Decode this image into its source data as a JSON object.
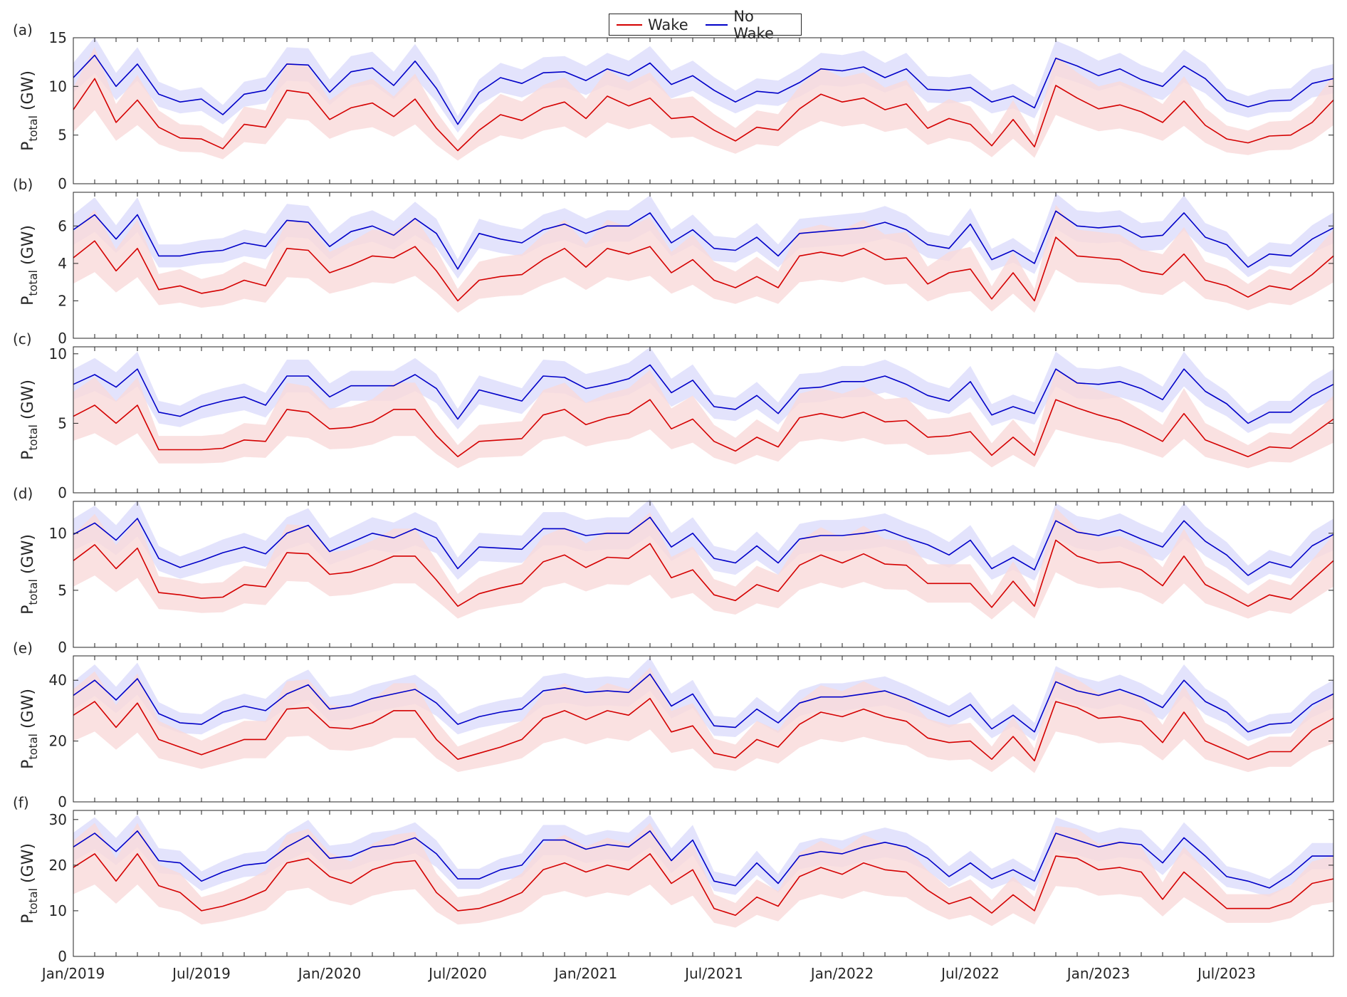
{
  "legend": {
    "wake_label": "Wake",
    "nowake_label": "No Wake"
  },
  "colors": {
    "wake": "#d40000",
    "nowake": "#0000c8",
    "wake_band": "#f9dada",
    "nowake_band": "#dcdcfb",
    "axis": "#262626"
  },
  "chart_data": [
    {
      "type": "area",
      "panel_label": "(a)",
      "ylabel_main": "P",
      "ylabel_sub": "total",
      "ylabel_unit": " (GW)",
      "ylim": [
        0,
        15
      ],
      "yticks": [
        0,
        5,
        10,
        15
      ],
      "xtick_labels": [
        "Jan/2019",
        "Jul/2019",
        "Jan/2020",
        "Jul/2020",
        "Jan/2021",
        "Jul/2021",
        "Jan/2022",
        "Jul/2022",
        "Jan/2023",
        "Jul/2023"
      ],
      "series": [
        {
          "name": "No Wake",
          "color": "#0000c8",
          "spread": 0.14,
          "values": [
            10.9,
            13.2,
            10.0,
            12.3,
            9.2,
            8.4,
            8.7,
            7.1,
            9.2,
            9.6,
            12.3,
            12.2,
            9.4,
            11.5,
            11.9,
            10.1,
            12.6,
            9.8,
            6.1,
            9.4,
            10.9,
            10.3,
            11.4,
            11.5,
            10.6,
            11.8,
            11.1,
            12.4,
            10.2,
            11.1,
            9.6,
            8.4,
            9.5,
            9.3,
            10.4,
            11.8,
            11.6,
            12.0,
            10.9,
            11.8,
            9.7,
            9.6,
            9.9,
            8.4,
            9.0,
            7.8,
            12.9,
            12.1,
            11.1,
            11.8,
            10.7,
            10.0,
            12.1,
            10.8,
            8.6,
            7.9,
            8.5,
            8.6,
            10.3,
            10.8
          ]
        },
        {
          "name": "Wake",
          "color": "#d40000",
          "spread": 0.3,
          "values": [
            7.6,
            10.8,
            6.3,
            8.6,
            5.8,
            4.7,
            4.6,
            3.6,
            6.1,
            5.8,
            9.6,
            9.3,
            6.6,
            7.8,
            8.3,
            6.9,
            8.7,
            5.7,
            3.4,
            5.5,
            7.1,
            6.5,
            7.8,
            8.4,
            6.7,
            9.0,
            8.0,
            8.8,
            6.7,
            6.9,
            5.5,
            4.4,
            5.8,
            5.5,
            7.7,
            9.2,
            8.4,
            8.8,
            7.6,
            8.2,
            5.7,
            6.7,
            6.1,
            3.9,
            6.6,
            3.8,
            10.1,
            8.8,
            7.7,
            8.1,
            7.4,
            6.3,
            8.5,
            6.0,
            4.6,
            4.2,
            4.9,
            5.0,
            6.3,
            8.6
          ]
        }
      ]
    },
    {
      "type": "area",
      "panel_label": "(b)",
      "ylabel_main": "P",
      "ylabel_sub": "total",
      "ylabel_unit": " (GW)",
      "ylim": [
        0,
        7.8
      ],
      "yticks": [
        0,
        2,
        4,
        6
      ],
      "xtick_labels": [
        "Jan/2019",
        "Jul/2019",
        "Jan/2020",
        "Jul/2020",
        "Jan/2021",
        "Jul/2021",
        "Jan/2022",
        "Jul/2022",
        "Jan/2023",
        "Jul/2023"
      ],
      "series": [
        {
          "name": "No Wake",
          "color": "#0000c8",
          "spread": 0.14,
          "values": [
            5.8,
            6.6,
            5.3,
            6.6,
            4.4,
            4.4,
            4.6,
            4.7,
            5.1,
            4.9,
            6.3,
            6.2,
            4.9,
            5.7,
            6.0,
            5.5,
            6.4,
            5.6,
            3.7,
            5.6,
            5.3,
            5.1,
            5.8,
            6.1,
            5.6,
            6.0,
            6.0,
            6.7,
            5.1,
            5.8,
            4.8,
            4.7,
            5.4,
            4.4,
            5.6,
            5.7,
            5.8,
            5.9,
            6.2,
            5.8,
            5.0,
            4.8,
            6.1,
            4.2,
            4.7,
            4.0,
            6.8,
            6.0,
            5.9,
            6.0,
            5.4,
            5.5,
            6.7,
            5.4,
            5.0,
            3.8,
            4.5,
            4.4,
            5.3,
            5.9
          ]
        },
        {
          "name": "Wake",
          "color": "#d40000",
          "spread": 0.32,
          "values": [
            4.3,
            5.2,
            3.6,
            4.8,
            2.6,
            2.8,
            2.4,
            2.6,
            3.1,
            2.8,
            4.8,
            4.7,
            3.5,
            3.9,
            4.4,
            4.3,
            4.9,
            3.6,
            2.0,
            3.1,
            3.3,
            3.4,
            4.2,
            4.8,
            3.8,
            4.8,
            4.5,
            4.9,
            3.5,
            4.2,
            3.1,
            2.7,
            3.3,
            2.7,
            4.4,
            4.6,
            4.4,
            4.8,
            4.2,
            4.3,
            2.9,
            3.5,
            3.7,
            2.1,
            3.5,
            2.0,
            5.4,
            4.4,
            4.3,
            4.2,
            3.6,
            3.4,
            4.5,
            3.1,
            2.8,
            2.2,
            2.8,
            2.6,
            3.4,
            4.4
          ]
        }
      ]
    },
    {
      "type": "area",
      "panel_label": "(c)",
      "ylabel_main": "P",
      "ylabel_sub": "total",
      "ylabel_unit": " (GW)",
      "ylim": [
        0,
        10.5
      ],
      "yticks": [
        0,
        5,
        10
      ],
      "xtick_labels": [
        "Jan/2019",
        "Jul/2019",
        "Jan/2020",
        "Jul/2020",
        "Jan/2021",
        "Jul/2021",
        "Jan/2022",
        "Jul/2022",
        "Jan/2023",
        "Jul/2023"
      ],
      "series": [
        {
          "name": "No Wake",
          "color": "#0000c8",
          "spread": 0.14,
          "values": [
            7.8,
            8.5,
            7.6,
            8.9,
            5.8,
            5.5,
            6.2,
            6.6,
            6.9,
            6.3,
            8.4,
            8.4,
            6.9,
            7.7,
            7.7,
            7.7,
            8.5,
            7.5,
            5.3,
            7.4,
            7.0,
            6.6,
            8.4,
            8.3,
            7.5,
            7.8,
            8.2,
            9.2,
            7.2,
            8.1,
            6.2,
            6.0,
            7.0,
            5.7,
            7.5,
            7.6,
            8.0,
            8.0,
            8.4,
            7.8,
            7.0,
            6.6,
            8.0,
            5.6,
            6.2,
            5.7,
            8.9,
            7.9,
            7.8,
            8.0,
            7.5,
            6.7,
            8.9,
            7.3,
            6.4,
            5.0,
            5.8,
            5.8,
            7.0,
            7.8
          ]
        },
        {
          "name": "Wake",
          "color": "#d40000",
          "spread": 0.32,
          "values": [
            5.5,
            6.3,
            5.0,
            6.3,
            3.1,
            3.1,
            3.1,
            3.2,
            3.8,
            3.7,
            6.0,
            5.8,
            4.6,
            4.7,
            5.1,
            6.0,
            6.0,
            4.1,
            2.6,
            3.7,
            3.8,
            3.9,
            5.6,
            6.0,
            4.9,
            5.4,
            5.7,
            6.7,
            4.6,
            5.3,
            3.7,
            3.0,
            4.0,
            3.3,
            5.4,
            5.7,
            5.4,
            5.8,
            5.1,
            5.2,
            4.0,
            4.1,
            4.4,
            2.7,
            4.0,
            2.7,
            6.7,
            6.1,
            5.6,
            5.2,
            4.5,
            3.7,
            5.7,
            3.8,
            3.2,
            2.6,
            3.3,
            3.2,
            4.2,
            5.3
          ]
        }
      ]
    },
    {
      "type": "area",
      "panel_label": "(d)",
      "ylabel_main": "P",
      "ylabel_sub": "total",
      "ylabel_unit": " (GW)",
      "ylim": [
        0,
        12.8
      ],
      "yticks": [
        0,
        5,
        10
      ],
      "xtick_labels": [
        "Jan/2019",
        "Jul/2019",
        "Jan/2020",
        "Jul/2020",
        "Jan/2021",
        "Jul/2021",
        "Jan/2022",
        "Jul/2022",
        "Jan/2023",
        "Jul/2023"
      ],
      "series": [
        {
          "name": "No Wake",
          "color": "#0000c8",
          "spread": 0.14,
          "values": [
            9.9,
            10.9,
            9.4,
            11.3,
            7.8,
            7.0,
            7.6,
            8.3,
            8.8,
            8.2,
            10.0,
            10.7,
            8.4,
            9.2,
            10.0,
            9.6,
            10.4,
            9.6,
            6.9,
            8.8,
            8.7,
            8.6,
            10.4,
            10.4,
            9.8,
            10.0,
            10.0,
            11.4,
            8.8,
            10.0,
            7.8,
            7.4,
            8.9,
            7.4,
            9.5,
            9.8,
            9.8,
            10.0,
            10.3,
            9.6,
            9.0,
            8.1,
            9.4,
            6.9,
            7.9,
            6.8,
            11.1,
            10.1,
            9.8,
            10.3,
            9.5,
            8.8,
            11.1,
            9.3,
            8.1,
            6.3,
            7.5,
            7.0,
            8.9,
            9.9
          ]
        },
        {
          "name": "Wake",
          "color": "#d40000",
          "spread": 0.3,
          "values": [
            7.6,
            9.0,
            6.9,
            8.7,
            4.8,
            4.6,
            4.3,
            4.4,
            5.5,
            5.3,
            8.3,
            8.2,
            6.4,
            6.6,
            7.2,
            8.0,
            8.0,
            5.9,
            3.6,
            4.7,
            5.2,
            5.6,
            7.5,
            8.1,
            7.0,
            7.9,
            7.8,
            9.1,
            6.1,
            6.8,
            4.6,
            4.1,
            5.5,
            4.9,
            7.2,
            8.1,
            7.4,
            8.2,
            7.3,
            7.2,
            5.6,
            5.6,
            5.6,
            3.5,
            5.8,
            3.6,
            9.4,
            8.0,
            7.4,
            7.5,
            6.8,
            5.4,
            8.0,
            5.5,
            4.6,
            3.6,
            4.6,
            4.2,
            5.9,
            7.6
          ]
        }
      ]
    },
    {
      "type": "area",
      "panel_label": "(e)",
      "ylabel_main": "P",
      "ylabel_sub": "total",
      "ylabel_unit": " (GW)",
      "ylim": [
        0,
        48
      ],
      "yticks": [
        0,
        20,
        40
      ],
      "xtick_labels": [
        "Jan/2019",
        "Jul/2019",
        "Jan/2020",
        "Jul/2020",
        "Jan/2021",
        "Jul/2021",
        "Jan/2022",
        "Jul/2022",
        "Jan/2023",
        "Jul/2023"
      ],
      "series": [
        {
          "name": "No Wake",
          "color": "#0000c8",
          "spread": 0.13,
          "values": [
            35,
            40,
            33.5,
            40.5,
            29,
            26,
            25.5,
            29.5,
            31.5,
            30,
            35.5,
            38.5,
            30.5,
            31.5,
            34,
            35.5,
            37,
            32.5,
            25.5,
            28,
            29.5,
            30.5,
            36.5,
            37.5,
            36,
            36.5,
            36,
            42,
            31.5,
            35.5,
            25,
            24.5,
            30.5,
            26,
            32.5,
            34.5,
            34.5,
            35.5,
            36.5,
            34,
            31,
            28,
            32,
            24,
            28.5,
            23,
            39.5,
            36.5,
            35,
            37,
            34.5,
            31,
            40,
            33,
            29.5,
            23,
            25.5,
            26,
            32,
            35.5
          ]
        },
        {
          "name": "Wake",
          "color": "#d40000",
          "spread": 0.3,
          "values": [
            28.5,
            33,
            24.5,
            32.5,
            20.5,
            18,
            15.5,
            18,
            20.5,
            20.5,
            30.5,
            31,
            24.5,
            24,
            26,
            30,
            30,
            20.5,
            14,
            16,
            18,
            20.5,
            27.5,
            30,
            27,
            30,
            28.5,
            34,
            23,
            25,
            16,
            14.5,
            20.5,
            18,
            25.5,
            29.5,
            28,
            30.5,
            28,
            26.5,
            21,
            19.5,
            20,
            14,
            21.5,
            13.5,
            33,
            31,
            27.5,
            28,
            26.5,
            19.5,
            29.5,
            20,
            17,
            14,
            16.5,
            16.5,
            23.5,
            27.5
          ]
        }
      ]
    },
    {
      "type": "area",
      "panel_label": "(f)",
      "ylabel_main": "P",
      "ylabel_sub": "total",
      "ylabel_unit": " (GW)",
      "ylim": [
        0,
        32
      ],
      "yticks": [
        0,
        10,
        20,
        30
      ],
      "xtick_labels": [
        "Jan/2019",
        "Jul/2019",
        "Jan/2020",
        "Jul/2020",
        "Jan/2021",
        "Jul/2021",
        "Jan/2022",
        "Jul/2022",
        "Jan/2023",
        "Jul/2023"
      ],
      "series": [
        {
          "name": "No Wake",
          "color": "#0000c8",
          "spread": 0.13,
          "values": [
            24,
            27,
            23,
            27.5,
            21,
            20.5,
            16.5,
            18.5,
            20,
            20.5,
            24,
            26.5,
            21.5,
            22,
            24,
            24.5,
            26,
            22.5,
            17,
            17,
            19,
            20,
            25.5,
            25.5,
            23.5,
            24.5,
            24,
            27.5,
            21,
            25.5,
            16.5,
            15.5,
            20.5,
            16,
            22,
            23,
            22.5,
            24,
            25,
            24,
            21.5,
            17.5,
            20.5,
            17,
            19,
            16.5,
            27,
            25.5,
            24,
            25,
            24.5,
            20.5,
            26,
            22,
            17.5,
            16.5,
            15,
            18,
            22,
            22
          ]
        },
        {
          "name": "Wake",
          "color": "#d40000",
          "spread": 0.3,
          "values": [
            19.5,
            22.5,
            16.5,
            22.5,
            15.5,
            14,
            10,
            11,
            12.5,
            14.5,
            20.5,
            21.5,
            17.5,
            16,
            19,
            20.5,
            21,
            14,
            10,
            10.5,
            12,
            14,
            19,
            20.5,
            18.5,
            20,
            19,
            22.5,
            16,
            19,
            10.5,
            9,
            13,
            11,
            17.5,
            19.5,
            18,
            20.5,
            19,
            18.5,
            14.5,
            11.5,
            13,
            9.5,
            13.5,
            10,
            22,
            21.5,
            19,
            19.5,
            18.5,
            12.5,
            18.5,
            14.5,
            10.5,
            10.5,
            10.5,
            12,
            16,
            17
          ]
        }
      ]
    }
  ]
}
